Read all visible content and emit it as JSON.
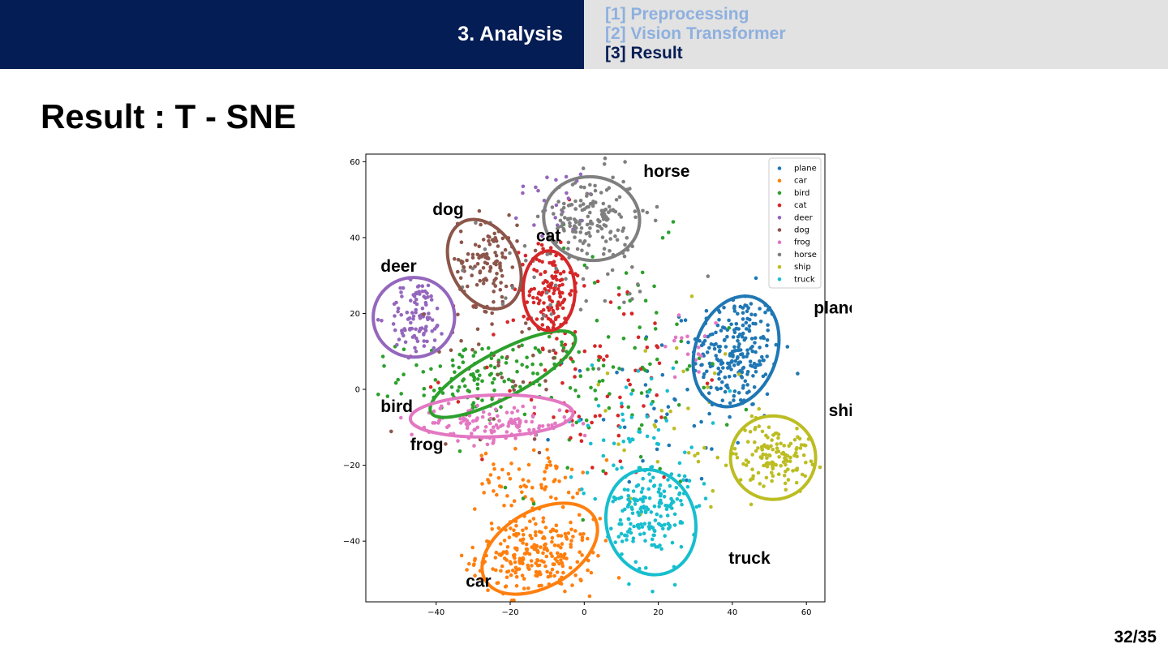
{
  "header": {
    "section_title": "3. Analysis",
    "nav_items": [
      {
        "label": "[1] Preprocessing",
        "active": false
      },
      {
        "label": "[2] Vision Transformer",
        "active": false
      },
      {
        "label": "[3] Result",
        "active": true
      }
    ]
  },
  "slide": {
    "title": "Result : T - SNE",
    "page_number": "32/35"
  },
  "colors": {
    "header_dark": "#051d55",
    "header_light": "#e2e2e2",
    "nav_inactive": "#8eb0df"
  },
  "chart_data": {
    "type": "scatter",
    "title": "",
    "xlabel": "",
    "ylabel": "",
    "xlim": [
      -59,
      65
    ],
    "ylim": [
      -56,
      62
    ],
    "xticks": [
      -40,
      -20,
      0,
      20,
      40,
      60
    ],
    "yticks": [
      60,
      40,
      20,
      0,
      -20,
      -40
    ],
    "grid": false,
    "legend_position": "top-right",
    "series": [
      {
        "name": "plane",
        "color": "#1f77b4",
        "clusters": [
          {
            "cx": 41,
            "cy": 10,
            "sx": 6,
            "sy": 8,
            "n": 230
          },
          {
            "cx": 20,
            "cy": -5,
            "sx": 12,
            "sy": 10,
            "n": 40
          }
        ]
      },
      {
        "name": "car",
        "color": "#ff7f0e",
        "clusters": [
          {
            "cx": -13,
            "cy": -44,
            "sx": 8,
            "sy": 5,
            "n": 250
          },
          {
            "cx": -15,
            "cy": -24,
            "sx": 7,
            "sy": 4,
            "n": 70
          }
        ]
      },
      {
        "name": "bird",
        "color": "#2ca02c",
        "clusters": [
          {
            "cx": -28,
            "cy": 3,
            "sx": 11,
            "sy": 5,
            "n": 120
          },
          {
            "cx": 10,
            "cy": 5,
            "sx": 15,
            "sy": 16,
            "n": 90
          }
        ]
      },
      {
        "name": "cat",
        "color": "#d62728",
        "clusters": [
          {
            "cx": -9,
            "cy": 26,
            "sx": 3,
            "sy": 7,
            "n": 130
          },
          {
            "cx": 0,
            "cy": 5,
            "sx": 15,
            "sy": 15,
            "n": 90
          }
        ]
      },
      {
        "name": "deer",
        "color": "#9467bd",
        "clusters": [
          {
            "cx": -45,
            "cy": 19,
            "sx": 4,
            "sy": 5,
            "n": 100
          },
          {
            "cx": -8,
            "cy": 50,
            "sx": 6,
            "sy": 5,
            "n": 25
          }
        ]
      },
      {
        "name": "dog",
        "color": "#8c564b",
        "clusters": [
          {
            "cx": -26,
            "cy": 34,
            "sx": 4,
            "sy": 6,
            "n": 110
          },
          {
            "cx": -20,
            "cy": 10,
            "sx": 10,
            "sy": 10,
            "n": 50
          }
        ]
      },
      {
        "name": "frog",
        "color": "#e377c2",
        "clusters": [
          {
            "cx": -25,
            "cy": -9,
            "sx": 11,
            "sy": 2.5,
            "n": 130
          },
          {
            "cx": 30,
            "cy": 12,
            "sx": 4,
            "sy": 5,
            "n": 15
          }
        ]
      },
      {
        "name": "horse",
        "color": "#7f7f7f",
        "clusters": [
          {
            "cx": 2,
            "cy": 45,
            "sx": 6,
            "sy": 6,
            "n": 160
          },
          {
            "cx": -5,
            "cy": 30,
            "sx": 15,
            "sy": 10,
            "n": 40
          }
        ]
      },
      {
        "name": "ship",
        "color": "#bcbd22",
        "clusters": [
          {
            "cx": 51,
            "cy": -17,
            "sx": 5,
            "sy": 4,
            "n": 130
          },
          {
            "cx": 28,
            "cy": -10,
            "sx": 12,
            "sy": 12,
            "n": 40
          }
        ]
      },
      {
        "name": "truck",
        "color": "#17becf",
        "clusters": [
          {
            "cx": 18,
            "cy": -33,
            "sx": 5,
            "sy": 7,
            "n": 170
          },
          {
            "cx": 15,
            "cy": -12,
            "sx": 10,
            "sy": 10,
            "n": 60
          }
        ]
      }
    ],
    "annotations": [
      {
        "text": "plane",
        "color": "#1f77b4",
        "cx": 41,
        "cy": 10,
        "rx": 11,
        "ry": 15,
        "angle": 20,
        "lx": 62,
        "ly": 20
      },
      {
        "text": "car",
        "color": "#ff7f0e",
        "cx": -12,
        "cy": -42,
        "rx": 17,
        "ry": 10,
        "angle": -30,
        "lx": -32,
        "ly": -52
      },
      {
        "text": "bird",
        "color": "#2ca02c",
        "cx": -22,
        "cy": 4,
        "rx": 22,
        "ry": 6,
        "angle": -28,
        "lx": -55,
        "ly": -6
      },
      {
        "text": "cat",
        "color": "#d62728",
        "cx": -9.5,
        "cy": 26,
        "rx": 7,
        "ry": 10.5,
        "angle": 0,
        "lx": -13,
        "ly": 39
      },
      {
        "text": "deer",
        "color": "#9467bd",
        "cx": -46,
        "cy": 19,
        "rx": 11,
        "ry": 10.5,
        "angle": 0,
        "lx": -55,
        "ly": 31
      },
      {
        "text": "dog",
        "color": "#8c564b",
        "cx": -27,
        "cy": 33,
        "rx": 9,
        "ry": 12.5,
        "angle": -28,
        "lx": -41,
        "ly": 46
      },
      {
        "text": "frog",
        "color": "#e377c2",
        "cx": -25,
        "cy": -7,
        "rx": 22,
        "ry": 5.5,
        "angle": -2,
        "lx": -47,
        "ly": -16
      },
      {
        "text": "horse",
        "color": "#7f7f7f",
        "cx": 2,
        "cy": 45,
        "rx": 13,
        "ry": 11,
        "angle": 8,
        "lx": 16,
        "ly": 56
      },
      {
        "text": "ship",
        "color": "#bcbd22",
        "cx": 51,
        "cy": -18,
        "rx": 11.5,
        "ry": 11,
        "angle": 0,
        "lx": 66,
        "ly": -7
      },
      {
        "text": "truck",
        "color": "#17becf",
        "cx": 18,
        "cy": -35,
        "rx": 12,
        "ry": 14,
        "angle": -15,
        "lx": 39,
        "ly": -46
      }
    ]
  }
}
